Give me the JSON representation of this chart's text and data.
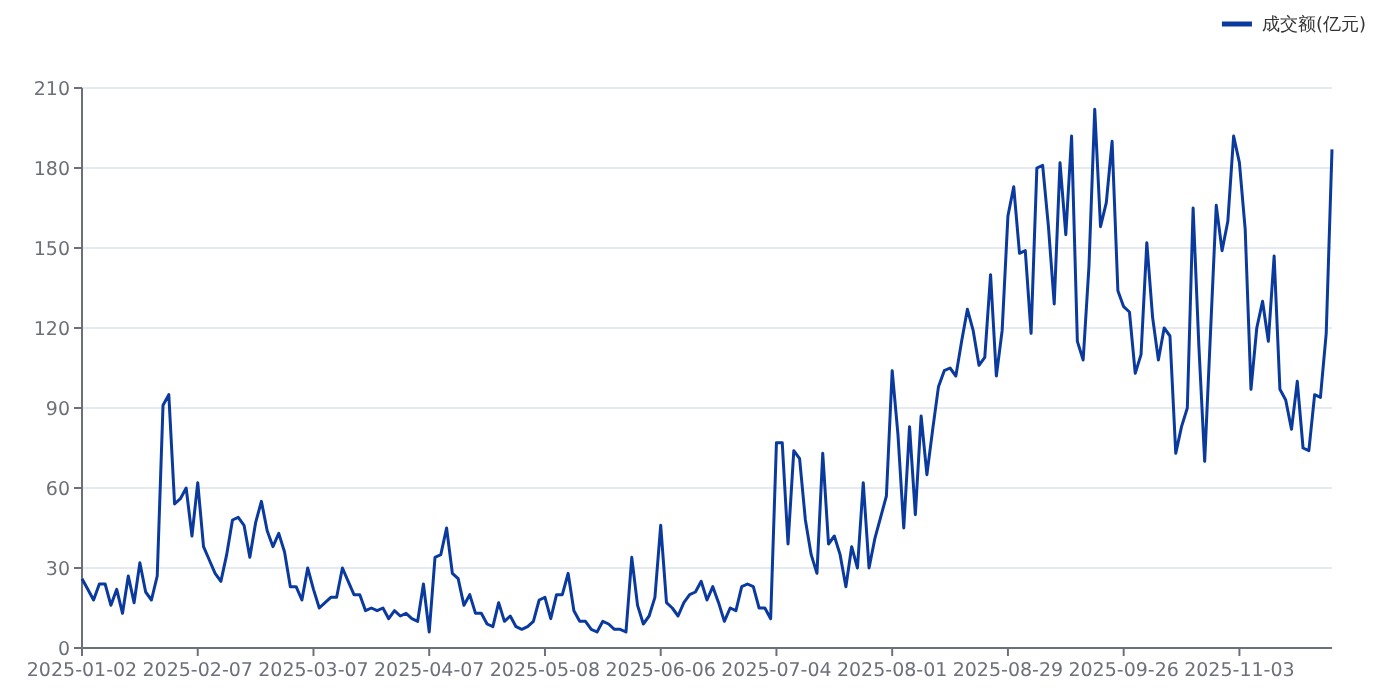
{
  "chart_data": {
    "type": "line",
    "categories": [
      "2025-01-02",
      null,
      null,
      null,
      null,
      null,
      null,
      null,
      null,
      null,
      null,
      null,
      null,
      null,
      null,
      null,
      null,
      null,
      null,
      null,
      "2025-02-07",
      null,
      null,
      null,
      null,
      null,
      null,
      null,
      null,
      null,
      null,
      null,
      null,
      null,
      null,
      null,
      null,
      null,
      null,
      null,
      "2025-03-07",
      null,
      null,
      null,
      null,
      null,
      null,
      null,
      null,
      null,
      null,
      null,
      null,
      null,
      null,
      null,
      null,
      null,
      null,
      null,
      "2025-04-07",
      null,
      null,
      null,
      null,
      null,
      null,
      null,
      null,
      null,
      null,
      null,
      null,
      null,
      null,
      null,
      null,
      null,
      null,
      null,
      "2025-05-08",
      null,
      null,
      null,
      null,
      null,
      null,
      null,
      null,
      null,
      null,
      null,
      null,
      null,
      null,
      null,
      null,
      null,
      null,
      null,
      "2025-06-06",
      null,
      null,
      null,
      null,
      null,
      null,
      null,
      null,
      null,
      null,
      null,
      null,
      null,
      null,
      null,
      null,
      null,
      null,
      null,
      "2025-07-04",
      null,
      null,
      null,
      null,
      null,
      null,
      null,
      null,
      null,
      null,
      null,
      null,
      null,
      null,
      null,
      null,
      null,
      null,
      null,
      "2025-08-01",
      null,
      null,
      null,
      null,
      null,
      null,
      null,
      null,
      null,
      null,
      null,
      null,
      null,
      null,
      null,
      null,
      null,
      null,
      null,
      "2025-08-29",
      null,
      null,
      null,
      null,
      null,
      null,
      null,
      null,
      null,
      null,
      null,
      null,
      null,
      null,
      null,
      null,
      null,
      null,
      null,
      "2025-09-26",
      null,
      null,
      null,
      null,
      null,
      null,
      null,
      null,
      null,
      null,
      null,
      null,
      null,
      null,
      null,
      null,
      null,
      null,
      null,
      "2025-11-03",
      null,
      null,
      null,
      null,
      null,
      null,
      null,
      null,
      null,
      null,
      null,
      null,
      null,
      null,
      null,
      null
    ],
    "series": [
      {
        "name": "成交额(亿元)",
        "color": "#0b3a9e",
        "values": [
          26,
          22,
          18,
          24,
          24,
          16,
          22,
          13,
          27,
          17,
          32,
          21,
          18,
          27,
          91,
          95,
          54,
          56,
          60,
          42,
          62,
          38,
          33,
          28,
          25,
          35,
          48,
          49,
          46,
          34,
          47,
          55,
          44,
          38,
          43,
          36,
          23,
          23,
          18,
          30,
          22,
          15,
          17,
          19,
          19,
          30,
          25,
          20,
          20,
          14,
          15,
          14,
          15,
          11,
          14,
          12,
          13,
          11,
          10,
          24,
          6,
          34,
          35,
          45,
          28,
          26,
          16,
          20,
          13,
          13,
          9,
          8,
          17,
          10,
          12,
          8,
          7,
          8,
          10,
          18,
          19,
          11,
          20,
          20,
          28,
          14,
          10,
          10,
          7,
          6,
          10,
          9,
          7,
          7,
          6,
          34,
          16,
          9,
          12,
          19,
          46,
          17,
          15,
          12,
          17,
          20,
          21,
          25,
          18,
          23,
          17,
          10,
          15,
          14,
          23,
          24,
          23,
          15,
          15,
          11,
          77,
          77,
          39,
          74,
          71,
          48,
          35,
          28,
          73,
          39,
          42,
          35,
          23,
          38,
          30,
          62,
          30,
          41,
          49,
          57,
          104,
          80,
          45,
          83,
          50,
          87,
          65,
          82,
          98,
          104,
          105,
          102,
          115,
          127,
          119,
          106,
          109,
          140,
          102,
          119,
          162,
          173,
          148,
          149,
          118,
          180,
          181,
          158,
          129,
          182,
          155,
          192,
          115,
          108,
          143,
          202,
          158,
          167,
          190,
          134,
          128,
          126,
          103,
          110,
          152,
          124,
          108,
          120,
          117,
          73,
          83,
          90,
          165,
          113,
          70,
          118,
          166,
          149,
          160,
          192,
          182,
          157,
          97,
          120,
          130,
          115,
          147,
          97,
          93,
          82,
          100,
          75,
          74,
          95,
          94,
          118,
          187
        ]
      }
    ],
    "ylim": [
      0,
      210
    ],
    "yticks": [
      0,
      30,
      60,
      90,
      120,
      150,
      180,
      210
    ],
    "grid": "y",
    "legend": "top right"
  }
}
